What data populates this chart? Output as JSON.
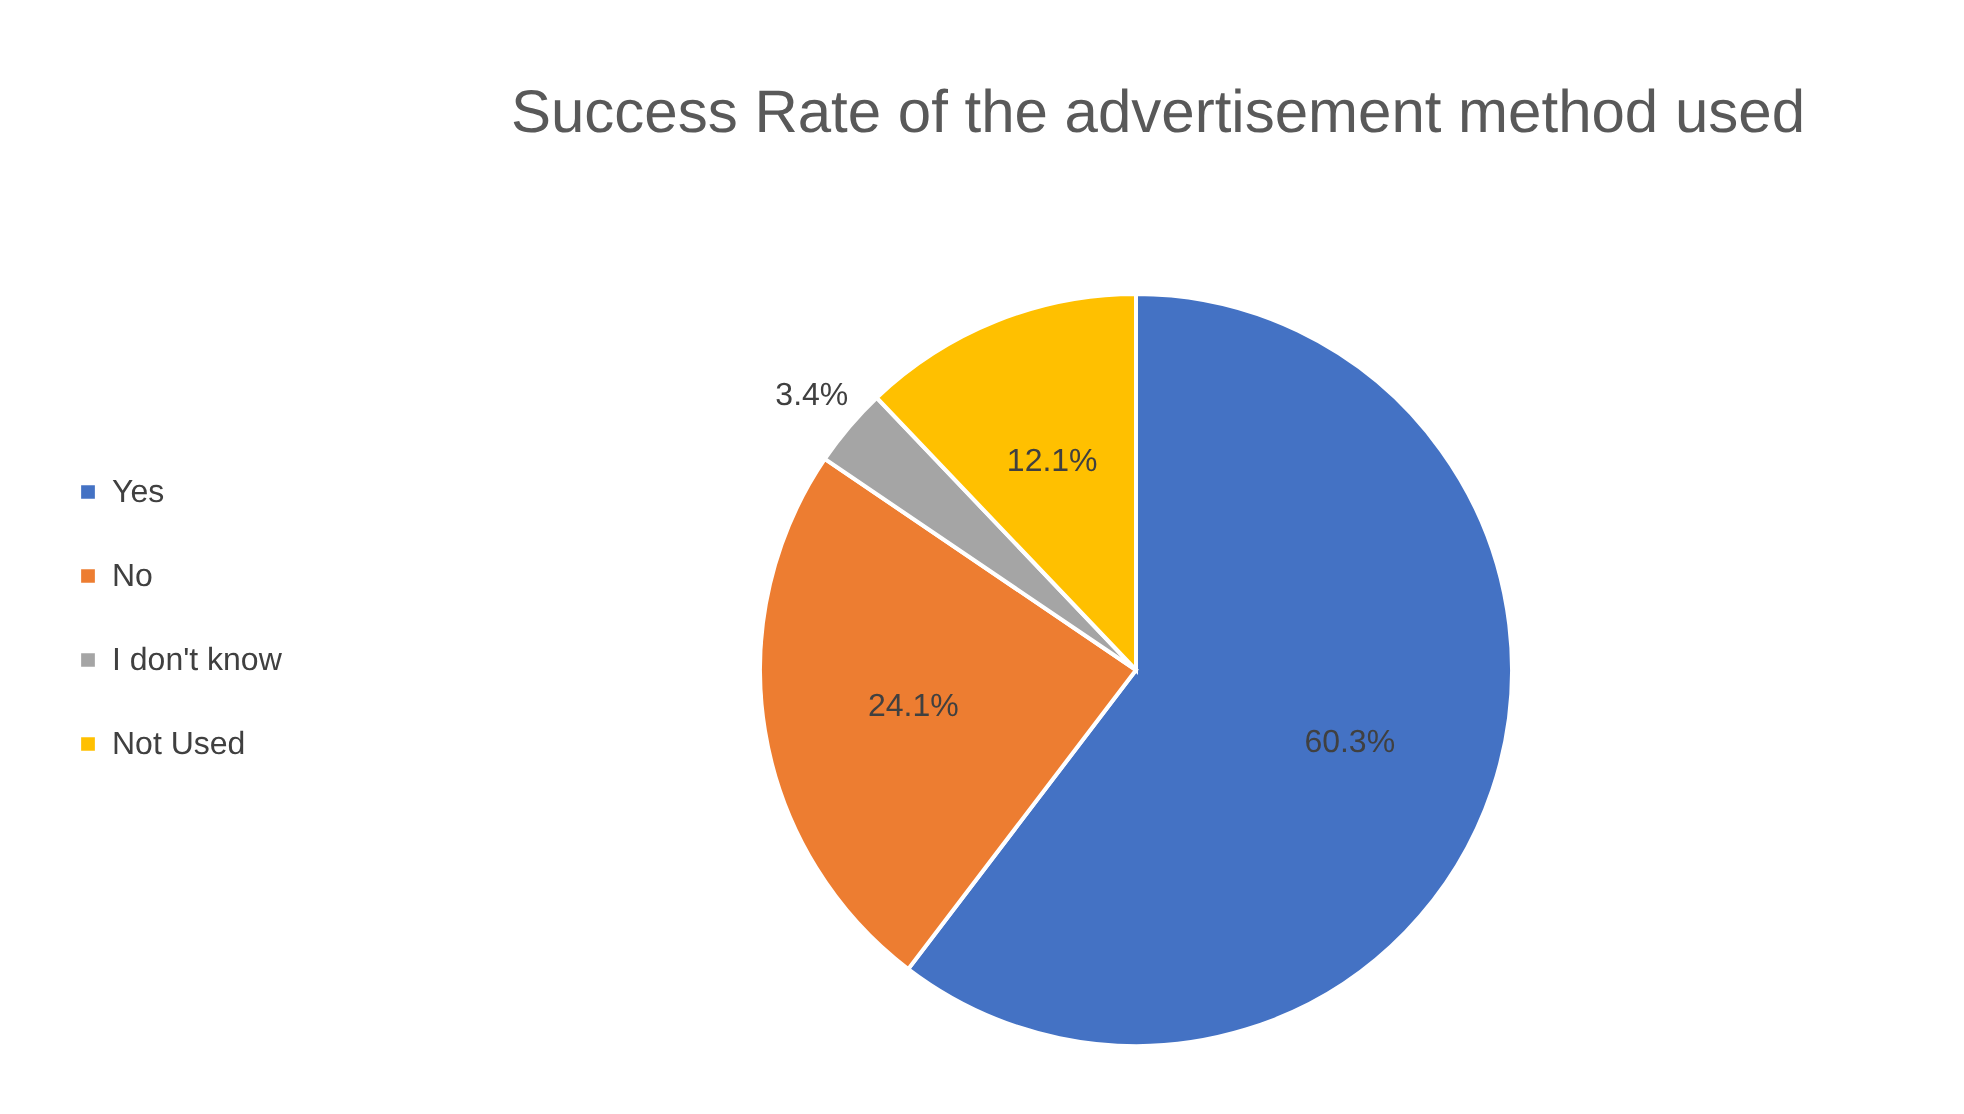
{
  "chart_data": {
    "type": "pie",
    "title": "Success Rate of the advertisement method used",
    "categories": [
      "Yes",
      "No",
      "I don't know",
      "Not Used"
    ],
    "values": [
      60.3,
      24.1,
      3.4,
      12.1
    ],
    "value_labels": [
      "60.3%",
      "24.1%",
      "3.4%",
      "12.1%"
    ],
    "colors": [
      "#4472c4",
      "#ed7d31",
      "#a5a5a5",
      "#ffc000"
    ],
    "legend": "left"
  }
}
